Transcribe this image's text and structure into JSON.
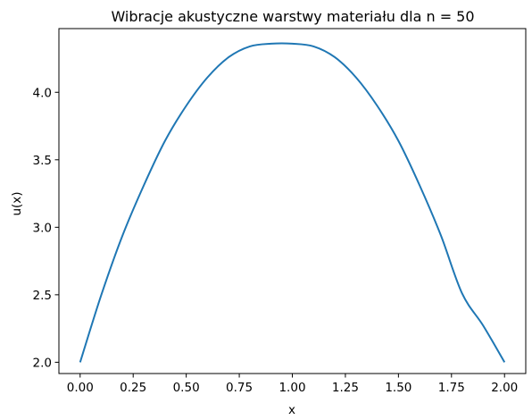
{
  "chart_data": {
    "type": "line",
    "title": "Wibracje akustyczne warstwy materiału dla n = 50",
    "xlabel": "x",
    "ylabel": "u(x)",
    "xlim": [
      -0.1,
      2.1
    ],
    "ylim": [
      1.9165,
      4.4718
    ],
    "xticks": [
      0.0,
      0.25,
      0.5,
      0.75,
      1.0,
      1.25,
      1.5,
      1.75,
      2.0
    ],
    "xtick_labels": [
      "0.00",
      "0.25",
      "0.50",
      "0.75",
      "1.00",
      "1.25",
      "1.50",
      "1.75",
      "2.00"
    ],
    "yticks": [
      2.0,
      2.5,
      3.0,
      3.5,
      4.0
    ],
    "ytick_labels": [
      "2.0",
      "2.5",
      "3.0",
      "3.5",
      "4.0"
    ],
    "grid": false,
    "series": [
      {
        "color": "#1f77b4",
        "x": [
          0.0,
          0.1,
          0.2,
          0.3,
          0.4,
          0.5,
          0.6,
          0.7,
          0.8,
          0.9,
          1.0,
          1.1,
          1.2,
          1.3,
          1.4,
          1.5,
          1.6,
          1.7,
          1.8,
          1.9,
          2.0
        ],
        "y": [
          2.0,
          2.5,
          2.94,
          3.31,
          3.64,
          3.9,
          4.11,
          4.26,
          4.34,
          4.36,
          4.36,
          4.34,
          4.26,
          4.11,
          3.9,
          3.64,
          3.31,
          2.94,
          2.51,
          2.27,
          2.0
        ]
      }
    ]
  }
}
